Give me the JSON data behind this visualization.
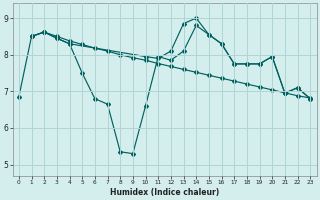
{
  "xlabel": "Humidex (Indice chaleur)",
  "bg_color": "#d4eeed",
  "grid_color": "#b0d4d4",
  "line_color": "#006060",
  "xlim": [
    -0.5,
    23.5
  ],
  "ylim": [
    4.7,
    9.4
  ],
  "yticks": [
    5,
    6,
    7,
    8,
    9
  ],
  "xticks": [
    0,
    1,
    2,
    3,
    4,
    5,
    6,
    7,
    8,
    9,
    10,
    11,
    12,
    13,
    14,
    15,
    16,
    17,
    18,
    19,
    20,
    21,
    22,
    23
  ],
  "series": [
    {
      "x": [
        0,
        1,
        2,
        3,
        4,
        5,
        6,
        7,
        8,
        9,
        10,
        11,
        12,
        13,
        14,
        15,
        16,
        17,
        18,
        19,
        20,
        21,
        22,
        23
      ],
      "y": [
        6.85,
        8.5,
        8.62,
        8.5,
        8.38,
        8.28,
        8.18,
        8.1,
        8.0,
        7.92,
        7.85,
        7.76,
        7.68,
        7.6,
        7.52,
        7.44,
        7.36,
        7.28,
        7.2,
        7.12,
        7.04,
        6.96,
        6.88,
        6.82
      ]
    },
    {
      "x": [
        1,
        2,
        3,
        4,
        5,
        6,
        7,
        8,
        9,
        10,
        11,
        12,
        13,
        14,
        15,
        16,
        17,
        18,
        19,
        20,
        21,
        22,
        23
      ],
      "y": [
        8.5,
        8.62,
        8.45,
        8.3,
        7.5,
        6.8,
        6.65,
        5.35,
        5.3,
        6.6,
        7.95,
        7.85,
        8.1,
        8.8,
        8.55,
        8.3,
        7.75,
        7.75,
        7.75,
        7.95,
        6.95,
        7.1,
        6.8
      ]
    },
    {
      "x": [
        1,
        2,
        3,
        4,
        10,
        11,
        12,
        13,
        14,
        15,
        16,
        17,
        18,
        19,
        20,
        21,
        22,
        23
      ],
      "y": [
        8.5,
        8.62,
        8.45,
        8.3,
        7.95,
        7.9,
        8.1,
        8.85,
        9.0,
        8.55,
        8.3,
        7.75,
        7.75,
        7.75,
        7.95,
        6.95,
        7.1,
        6.8
      ]
    }
  ]
}
